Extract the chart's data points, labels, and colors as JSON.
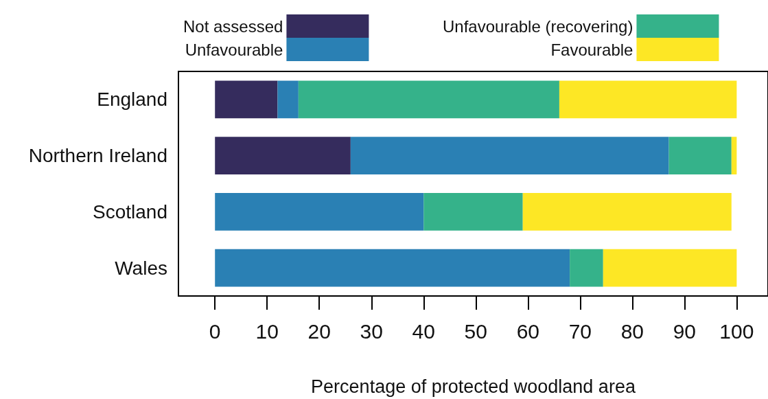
{
  "chart_data": {
    "type": "bar",
    "orientation": "horizontal",
    "stacked": true,
    "xlabel": "Percentage of protected woodland area",
    "categories": [
      "England",
      "Northern Ireland",
      "Scotland",
      "Wales"
    ],
    "series": [
      {
        "name": "Not assessed",
        "color": "#352c5d",
        "values": [
          12,
          26,
          0,
          0
        ]
      },
      {
        "name": "Unfavourable",
        "color": "#2a80b4",
        "values": [
          4,
          61,
          40,
          68
        ]
      },
      {
        "name": "Unfavourable (recovering)",
        "color": "#35b28a",
        "values": [
          50,
          12,
          19,
          6.4
        ]
      },
      {
        "name": "Favourable",
        "color": "#fde725",
        "values": [
          34,
          1,
          40,
          25.6
        ]
      }
    ],
    "xlim": [
      -7,
      106
    ],
    "xticks": [
      0,
      10,
      20,
      30,
      40,
      50,
      60,
      70,
      80,
      90,
      100
    ],
    "grid": false,
    "legend": "top"
  }
}
